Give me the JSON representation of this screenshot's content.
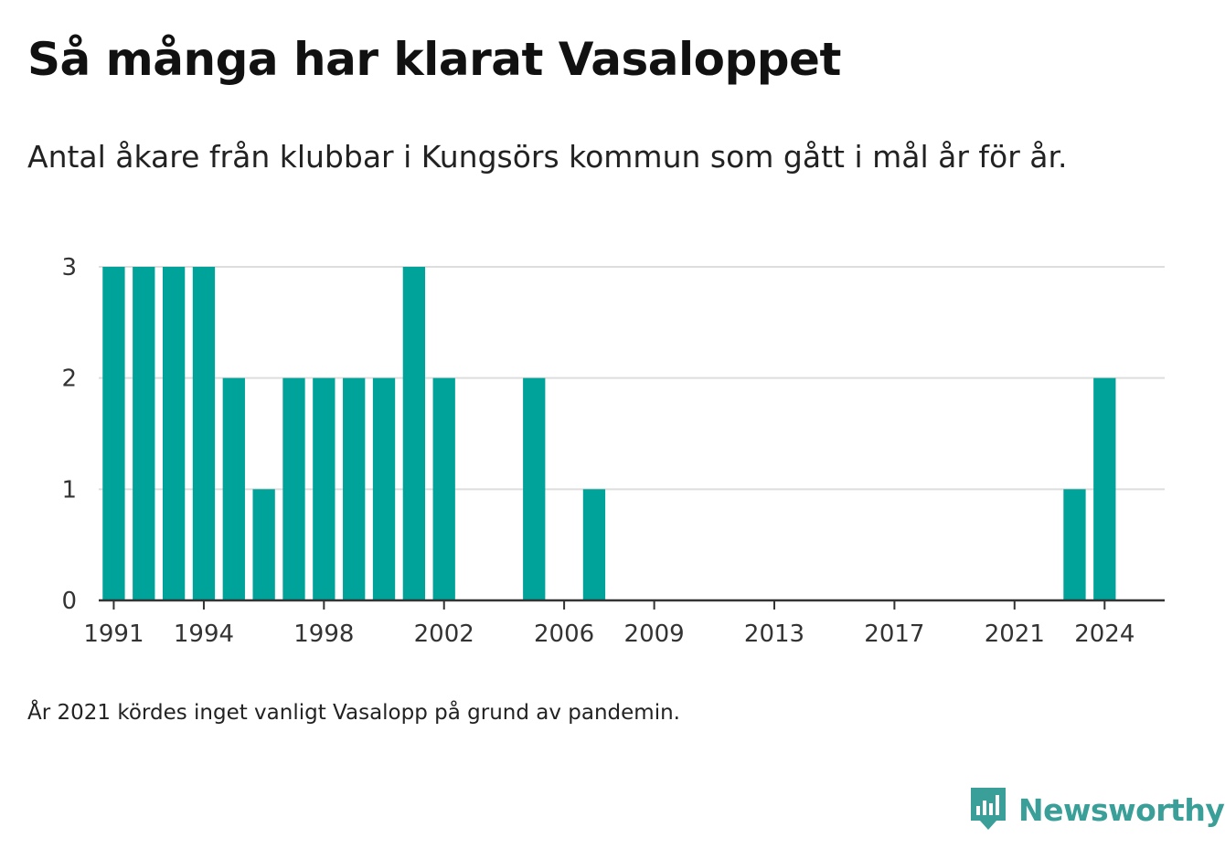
{
  "title": "Så många har klarat Vasaloppet",
  "subtitle": "Antal åkare från klubbar i Kungsörs kommun som gått i mål år för år.",
  "footnote": "År 2021 kördes inget vanligt Vasalopp på grund av pandemin.",
  "brand": {
    "name": "Newsworthy",
    "icon": "newsworthy-logo-icon",
    "color": "#3a9f98"
  },
  "chart_data": {
    "type": "bar",
    "x": [
      1991,
      1992,
      1993,
      1994,
      1995,
      1996,
      1997,
      1998,
      1999,
      2000,
      2001,
      2002,
      2003,
      2004,
      2005,
      2006,
      2007,
      2008,
      2009,
      2010,
      2011,
      2012,
      2013,
      2014,
      2015,
      2016,
      2017,
      2018,
      2019,
      2020,
      2021,
      2022,
      2023,
      2024
    ],
    "values": [
      3,
      3,
      3,
      3,
      2,
      1,
      2,
      2,
      2,
      2,
      3,
      2,
      0,
      0,
      2,
      0,
      1,
      0,
      0,
      0,
      0,
      0,
      0,
      0,
      0,
      0,
      0,
      0,
      0,
      0,
      0,
      0,
      1,
      2
    ],
    "x_tick_labels": [
      "1991",
      "1994",
      "1998",
      "2002",
      "2006",
      "2009",
      "2013",
      "2017",
      "2021",
      "2024"
    ],
    "y_tick_labels": [
      "0",
      "1",
      "2",
      "3"
    ],
    "xlim": [
      1990.5,
      2026
    ],
    "ylim": [
      0,
      3
    ],
    "xlabel": "",
    "ylabel": "",
    "grid": true,
    "bar_color": "#00a39a",
    "grid_color": "#dddddd",
    "axis_color": "#333333"
  }
}
